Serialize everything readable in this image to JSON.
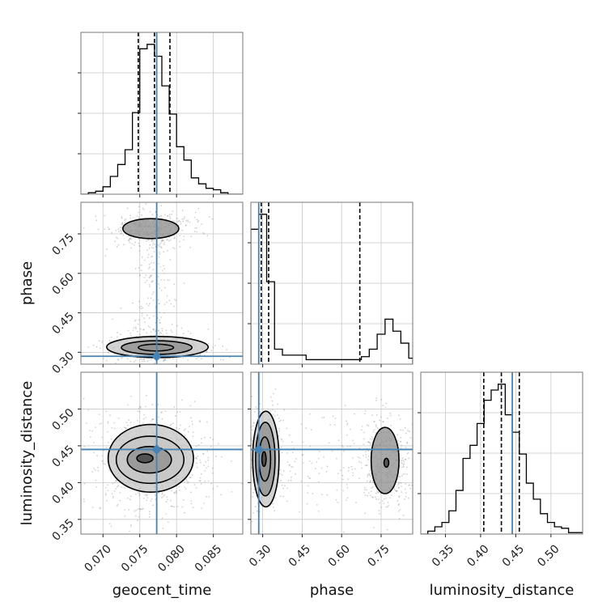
{
  "chart_data": {
    "type": "corner",
    "parameters": [
      "geocent_time",
      "phase",
      "luminosity_distance"
    ],
    "truths": {
      "geocent_time": 0.0773,
      "phase": 0.285,
      "luminosity_distance": 0.445
    },
    "truth_color": "#4682b4",
    "grid": true,
    "panels": [
      {
        "id": "hist-geocent_time",
        "type": "step-histogram",
        "x_param": "geocent_time",
        "xlim": [
          0.067,
          0.089
        ],
        "bins": [
          0.067,
          0.068,
          0.069,
          0.07,
          0.071,
          0.072,
          0.073,
          0.074,
          0.075,
          0.076,
          0.077,
          0.078,
          0.079,
          0.08,
          0.081,
          0.082,
          0.083,
          0.084,
          0.085,
          0.086,
          0.087,
          0.088,
          0.089
        ],
        "counts": [
          0,
          1,
          2,
          5,
          12,
          20,
          30,
          55,
          98,
          101,
          93,
          73,
          54,
          32,
          23,
          11,
          7,
          4,
          3,
          1,
          0,
          0
        ],
        "quantiles": [
          0.0748,
          0.077,
          0.0791
        ]
      },
      {
        "id": "hist-phase",
        "type": "step-histogram",
        "x_param": "phase",
        "xlim": [
          0.255,
          0.87
        ],
        "bins": [
          0.255,
          0.285,
          0.315,
          0.345,
          0.375,
          0.405,
          0.435,
          0.465,
          0.495,
          0.525,
          0.555,
          0.585,
          0.615,
          0.645,
          0.675,
          0.705,
          0.735,
          0.765,
          0.795,
          0.825,
          0.855,
          0.87
        ],
        "counts": [
          90,
          100,
          55,
          10,
          6,
          6,
          6,
          3,
          3,
          3,
          3,
          3,
          3,
          3,
          5,
          10,
          20,
          30,
          22,
          14,
          4
        ],
        "quantiles": [
          0.2945,
          0.3226,
          0.669
        ]
      },
      {
        "id": "hist-luminosity_distance",
        "type": "step-histogram",
        "x_param": "luminosity_distance",
        "xlim": [
          0.315,
          0.545
        ],
        "bins": [
          0.315,
          0.325,
          0.335,
          0.345,
          0.355,
          0.365,
          0.375,
          0.385,
          0.395,
          0.405,
          0.415,
          0.425,
          0.435,
          0.445,
          0.455,
          0.465,
          0.475,
          0.485,
          0.495,
          0.505,
          0.515,
          0.525,
          0.535,
          0.545
        ],
        "counts": [
          0,
          2,
          5,
          8,
          16,
          30,
          52,
          61,
          76,
          92,
          99,
          103,
          82,
          70,
          55,
          35,
          24,
          14,
          8,
          5,
          4,
          1,
          1
        ],
        "quantiles": [
          0.4045,
          0.4295,
          0.455
        ]
      },
      {
        "id": "scatter-phase-vs-geocent_time",
        "type": "2d-density",
        "x_param": "geocent_time",
        "y_param": "phase",
        "xlim": [
          0.067,
          0.089
        ],
        "ylim": [
          0.255,
          0.87
        ],
        "modes": [
          {
            "x": 0.0772,
            "y": 0.318,
            "sx": 0.0026,
            "sy": 0.022
          },
          {
            "x": 0.0765,
            "y": 0.77,
            "sx": 0.0021,
            "sy": 0.022
          }
        ],
        "contours": [
          {
            "x": 0.0772,
            "y": 0.318,
            "rx": 0.0024,
            "ry": 0.013
          },
          {
            "x": 0.0773,
            "y": 0.318,
            "rx": 0.0048,
            "ry": 0.026
          },
          {
            "x": 0.0774,
            "y": 0.32,
            "rx": 0.0069,
            "ry": 0.04
          },
          {
            "x": 0.0765,
            "y": 0.77,
            "rx": 0.0038,
            "ry": 0.038
          }
        ]
      },
      {
        "id": "scatter-luminosity_distance-vs-geocent_time",
        "type": "2d-density",
        "x_param": "geocent_time",
        "y_param": "luminosity_distance",
        "xlim": [
          0.067,
          0.089
        ],
        "ylim": [
          0.33,
          0.55
        ],
        "modes": [
          {
            "x": 0.0765,
            "y": 0.43,
            "sx": 0.0027,
            "sy": 0.024
          }
        ],
        "contours": [
          {
            "x": 0.0757,
            "y": 0.433,
            "rx": 0.0011,
            "ry": 0.006
          },
          {
            "x": 0.0763,
            "y": 0.431,
            "rx": 0.003,
            "ry": 0.018
          },
          {
            "x": 0.0764,
            "y": 0.431,
            "rx": 0.0046,
            "ry": 0.032
          },
          {
            "x": 0.0765,
            "y": 0.433,
            "rx": 0.0058,
            "ry": 0.046
          }
        ]
      },
      {
        "id": "scatter-luminosity_distance-vs-phase",
        "type": "2d-density",
        "x_param": "phase",
        "y_param": "luminosity_distance",
        "xlim": [
          0.255,
          0.87
        ],
        "ylim": [
          0.33,
          0.55
        ],
        "modes": [
          {
            "x": 0.305,
            "y": 0.433,
            "sx": 0.025,
            "sy": 0.025
          },
          {
            "x": 0.77,
            "y": 0.425,
            "sx": 0.035,
            "sy": 0.024
          }
        ],
        "contours": [
          {
            "x": 0.305,
            "y": 0.432,
            "rx": 0.008,
            "ry": 0.01
          },
          {
            "x": 0.308,
            "y": 0.432,
            "rx": 0.022,
            "ry": 0.03
          },
          {
            "x": 0.31,
            "y": 0.432,
            "rx": 0.037,
            "ry": 0.05
          },
          {
            "x": 0.312,
            "y": 0.432,
            "rx": 0.05,
            "ry": 0.065
          },
          {
            "x": 0.77,
            "y": 0.427,
            "rx": 0.009,
            "ry": 0.006
          },
          {
            "x": 0.765,
            "y": 0.43,
            "rx": 0.053,
            "ry": 0.045
          }
        ]
      }
    ],
    "ticks": {
      "geocent_time": [
        {
          "value": 0.07,
          "label": "0.070"
        },
        {
          "value": 0.075,
          "label": "0.075"
        },
        {
          "value": 0.08,
          "label": "0.080"
        },
        {
          "value": 0.085,
          "label": "0.085"
        }
      ],
      "phase": [
        {
          "value": 0.3,
          "label": "0.30"
        },
        {
          "value": 0.45,
          "label": "0.45"
        },
        {
          "value": 0.6,
          "label": "0.60"
        },
        {
          "value": 0.75,
          "label": "0.75"
        }
      ],
      "luminosity_distance": [
        {
          "value": 0.35,
          "label": "0.35"
        },
        {
          "value": 0.4,
          "label": "0.40"
        },
        {
          "value": 0.45,
          "label": "0.45"
        },
        {
          "value": 0.5,
          "label": "0.50"
        }
      ]
    },
    "axis_labels": {
      "x": [
        "geocent_time",
        "phase",
        "luminosity_distance"
      ],
      "y": [
        "phase",
        "luminosity_distance"
      ]
    }
  }
}
